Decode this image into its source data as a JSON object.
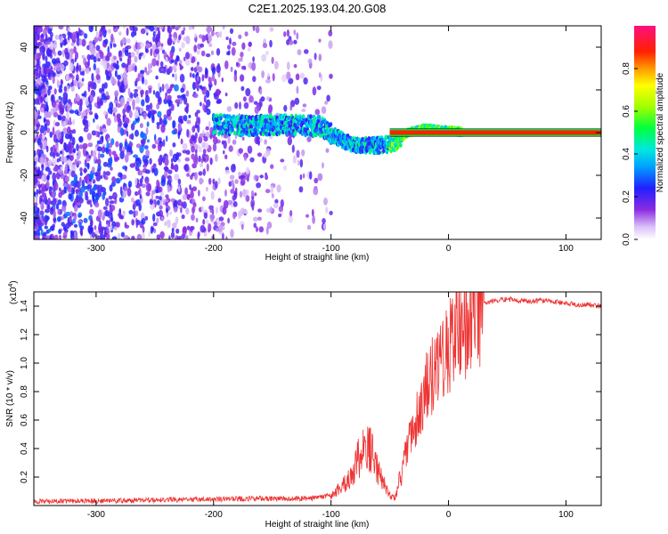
{
  "title": "C2E1.2025.193.04.20.G08",
  "chart_data": [
    {
      "type": "heatmap",
      "xlabel": "Height of straight line (km)",
      "ylabel": "Frequency (Hz)",
      "xlim": [
        -353,
        130
      ],
      "ylim": [
        -50,
        50
      ],
      "x_ticks": [
        -300,
        -200,
        -100,
        0,
        100
      ],
      "y_ticks": [
        -40,
        -20,
        0,
        20,
        40
      ],
      "colorbar": {
        "label": "Normalized spectral amplitude",
        "range": [
          0,
          1
        ],
        "ticks": [
          0.0,
          0.2,
          0.4,
          0.6,
          0.8
        ]
      },
      "grid": false,
      "features": {
        "noise_region_x": [
          -353,
          -120
        ],
        "signal_track": [
          {
            "x": -200,
            "y": 4
          },
          {
            "x": -170,
            "y": 3
          },
          {
            "x": -140,
            "y": 4
          },
          {
            "x": -110,
            "y": 3
          },
          {
            "x": -95,
            "y": -2
          },
          {
            "x": -80,
            "y": -6
          },
          {
            "x": -60,
            "y": -6
          },
          {
            "x": -45,
            "y": -5
          },
          {
            "x": -35,
            "y": 0
          },
          {
            "x": -20,
            "y": 2
          },
          {
            "x": 0,
            "y": 1
          },
          {
            "x": 10,
            "y": 0.5
          },
          {
            "x": 130,
            "y": 0
          }
        ]
      }
    },
    {
      "type": "line",
      "xlabel": "Height of straight line (km)",
      "ylabel": "SNR (10 * v/v)",
      "y_multiplier": "(x10",
      "y_multiplier_exp": "4",
      "xlim": [
        -353,
        130
      ],
      "ylim": [
        0,
        15000
      ],
      "x_ticks": [
        -300,
        -200,
        -100,
        0,
        100
      ],
      "y_ticks": [
        2000,
        4000,
        6000,
        8000,
        10000,
        12000,
        14000
      ],
      "y_tick_labels": [
        "0.2",
        "0.4",
        "0.6",
        "0.8",
        "1.0",
        "1.2",
        "1.4"
      ],
      "grid": false,
      "color": "#ee3333",
      "series": [
        {
          "x": [
            -353,
            -300,
            -250,
            -200,
            -150,
            -120,
            -100,
            -90,
            -80,
            -75,
            -70,
            -65,
            -60,
            -55,
            -50,
            -45,
            -40,
            -35,
            -30,
            -25,
            -20,
            -15,
            -10,
            -5,
            0,
            5,
            10,
            15,
            20,
            25,
            30,
            35,
            40,
            50,
            60,
            70,
            80,
            90,
            100,
            110,
            120,
            130
          ],
          "values": [
            300,
            320,
            380,
            450,
            500,
            480,
            700,
            1300,
            2800,
            3500,
            4200,
            3800,
            2500,
            1500,
            700,
            600,
            2500,
            4200,
            5500,
            6500,
            8000,
            9000,
            10000,
            10500,
            11200,
            12000,
            12500,
            13000,
            13500,
            13900,
            14100,
            14300,
            14400,
            14500,
            14400,
            14300,
            14400,
            14300,
            14200,
            14100,
            14100,
            14000
          ]
        }
      ]
    }
  ]
}
